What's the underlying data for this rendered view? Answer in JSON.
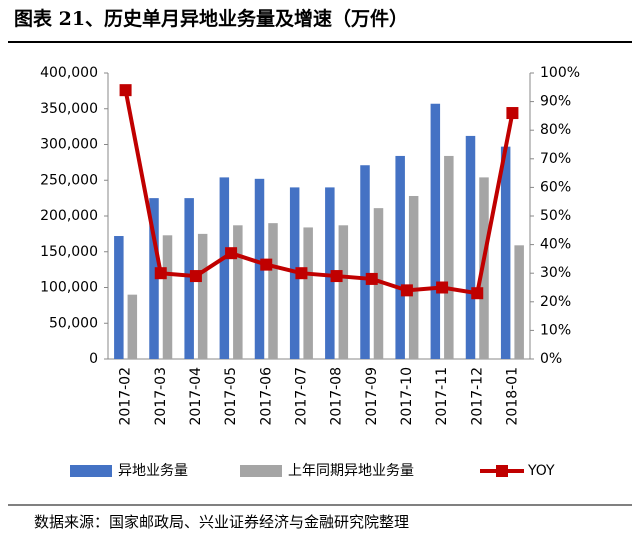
{
  "chart_data": {
    "type": "bar-line",
    "title": "图表 21、历史单月异地业务量及增速（万件）",
    "source": "数据来源：国家邮政局、兴业证券经济与金融研究院整理",
    "categories": [
      "2017-02",
      "2017-03",
      "2017-04",
      "2017-05",
      "2017-06",
      "2017-07",
      "2017-08",
      "2017-09",
      "2017-10",
      "2017-11",
      "2017-12",
      "2018-01"
    ],
    "series": [
      {
        "name": "异地业务量",
        "type": "bar",
        "color": "#4472c4",
        "values": [
          172000,
          225000,
          225000,
          254000,
          252000,
          240000,
          240000,
          271000,
          284000,
          357000,
          312000,
          297000
        ]
      },
      {
        "name": "上年同期异地业务量",
        "type": "bar",
        "color": "#a5a5a5",
        "values": [
          90000,
          173000,
          175000,
          187000,
          190000,
          184000,
          187000,
          211000,
          228000,
          284000,
          254000,
          159000
        ]
      },
      {
        "name": "YOY",
        "type": "line",
        "axis": "y2",
        "color": "#c00000",
        "values": [
          94,
          30,
          29,
          37,
          33,
          30,
          29,
          28,
          24,
          25,
          23,
          86
        ]
      }
    ],
    "ylim": [
      0,
      400000
    ],
    "yticks": [
      0,
      {
        "value": 50000,
        "label": "50,000"
      },
      {
        "value": 100000,
        "label": "100,000"
      },
      {
        "value": 150000,
        "label": "150,000"
      },
      {
        "value": 200000,
        "label": "200,000"
      },
      {
        "value": 250000,
        "label": "250,000"
      },
      {
        "value": 300000,
        "label": "300,000"
      },
      {
        "value": 350000,
        "label": "350,000"
      },
      {
        "value": 400000,
        "label": "400,000"
      }
    ],
    "y2lim": [
      0,
      100
    ],
    "y2ticks": [
      {
        "value": 0,
        "label": "0%"
      },
      {
        "value": 10,
        "label": "10%"
      },
      {
        "value": 20,
        "label": "20%"
      },
      {
        "value": 30,
        "label": "30%"
      },
      {
        "value": 40,
        "label": "40%"
      },
      {
        "value": 50,
        "label": "50%"
      },
      {
        "value": 60,
        "label": "60%"
      },
      {
        "value": 70,
        "label": "70%"
      },
      {
        "value": 80,
        "label": "80%"
      },
      {
        "value": 90,
        "label": "90%"
      },
      {
        "value": 100,
        "label": "100%"
      }
    ],
    "grid": false,
    "legend": "bottom"
  }
}
